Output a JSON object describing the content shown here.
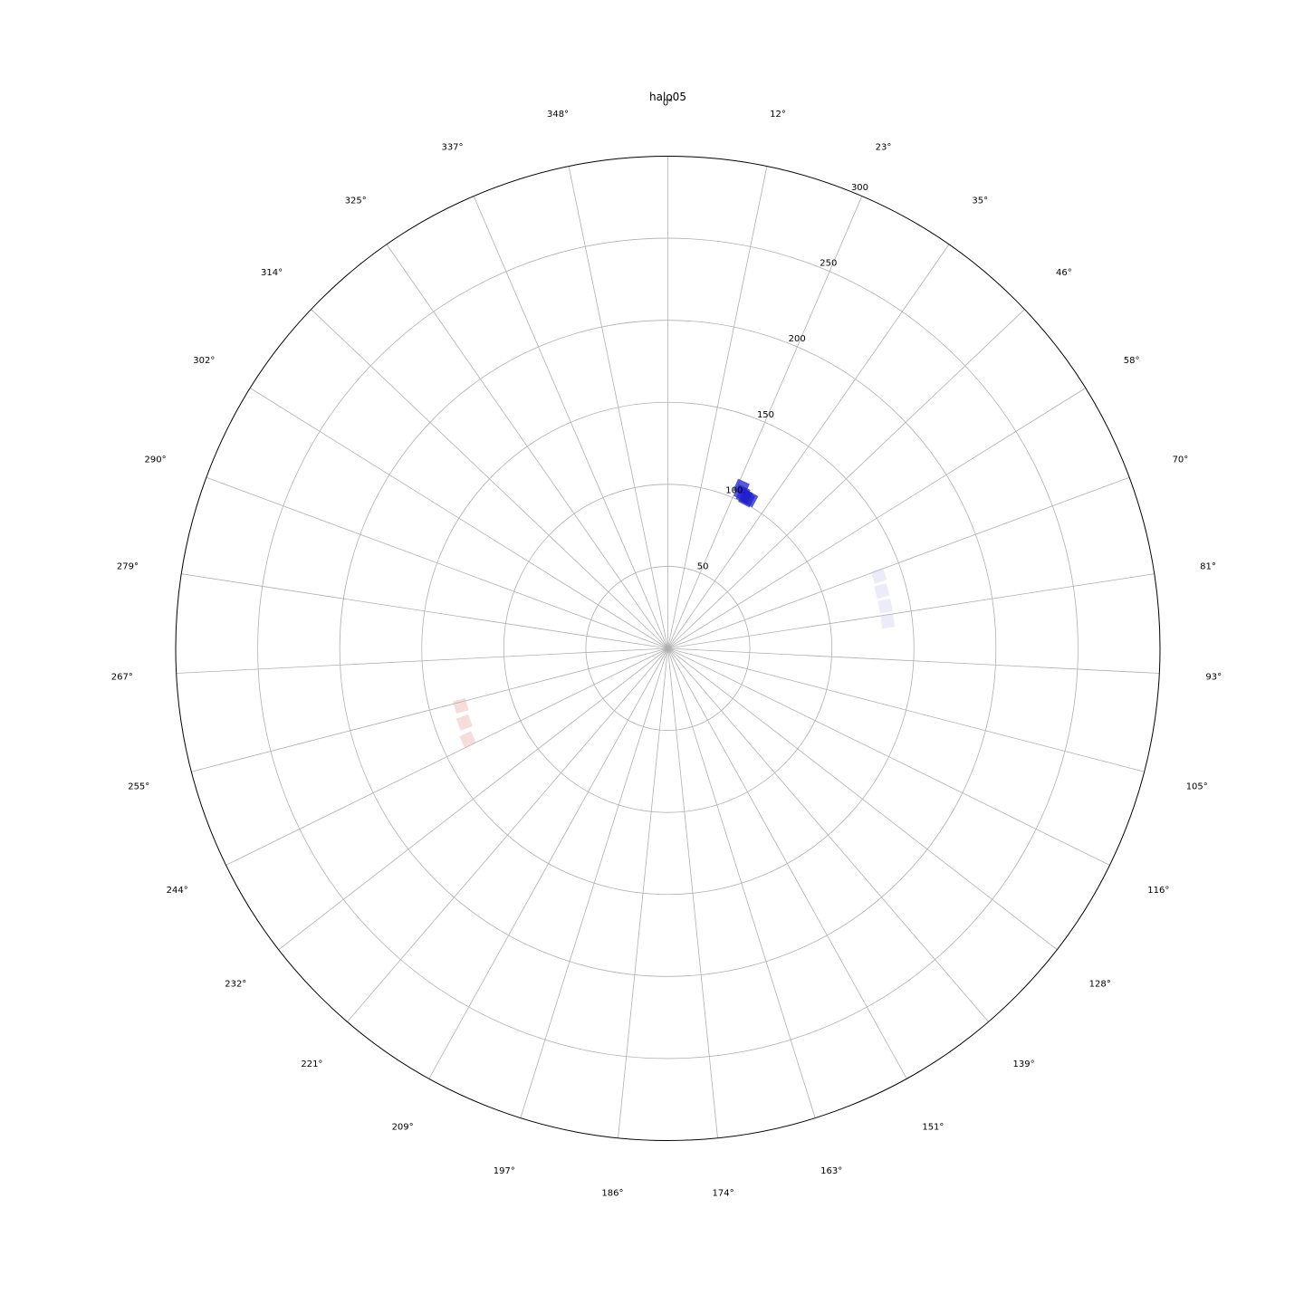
{
  "chart_data": {
    "type": "polar",
    "title": "halo05",
    "theta_direction": "clockwise",
    "theta_zero_location": "top",
    "theta_ticks_deg": [
      0,
      11.6129,
      23.2258,
      34.8387,
      46.4516,
      58.0645,
      69.6774,
      81.2903,
      92.9032,
      104.5161,
      116.129,
      127.7419,
      139.3548,
      150.9677,
      162.5806,
      174.1935,
      185.8065,
      197.4194,
      209.0323,
      220.6452,
      232.2581,
      243.871,
      255.4839,
      267.0968,
      278.7097,
      290.3226,
      301.9355,
      313.5484,
      325.1613,
      336.7742,
      348.3871
    ],
    "theta_tick_labels": [
      "0°",
      "12°",
      "23°",
      "35°",
      "46°",
      "58°",
      "70°",
      "81°",
      "93°",
      "105°",
      "116°",
      "128°",
      "139°",
      "151°",
      "163°",
      "174°",
      "186°",
      "197°",
      "209°",
      "221°",
      "232°",
      "244°",
      "255°",
      "267°",
      "279°",
      "290°",
      "302°",
      "314°",
      "325°",
      "337°",
      "348°"
    ],
    "r_ticks": [
      50,
      100,
      150,
      200,
      250,
      300
    ],
    "r_tick_labels": [
      "50",
      "100",
      "150",
      "200",
      "250",
      "300"
    ],
    "r_label_angle_deg": 22.5,
    "rlim": [
      0,
      300
    ],
    "grid": true,
    "series": [
      {
        "color": "#1f1fcc",
        "opacity": 0.75,
        "points": [
          {
            "theta": 25.5,
            "r": 105
          },
          {
            "theta": 26.6,
            "r": 104
          },
          {
            "theta": 27.8,
            "r": 103
          },
          {
            "theta": 28.7,
            "r": 104
          },
          {
            "theta": 24.5,
            "r": 108
          }
        ]
      },
      {
        "color": "#c6c6ee",
        "opacity": 0.35,
        "points": [
          {
            "theta": 71.0,
            "r": 136
          },
          {
            "theta": 75.0,
            "r": 135
          },
          {
            "theta": 79.0,
            "r": 135
          },
          {
            "theta": 83.0,
            "r": 135
          }
        ]
      },
      {
        "color": "#e6a9a6",
        "opacity": 0.4,
        "points": [
          {
            "theta": 254.5,
            "r": 131
          },
          {
            "theta": 250.0,
            "r": 132
          },
          {
            "theta": 245.5,
            "r": 134
          }
        ]
      }
    ]
  }
}
